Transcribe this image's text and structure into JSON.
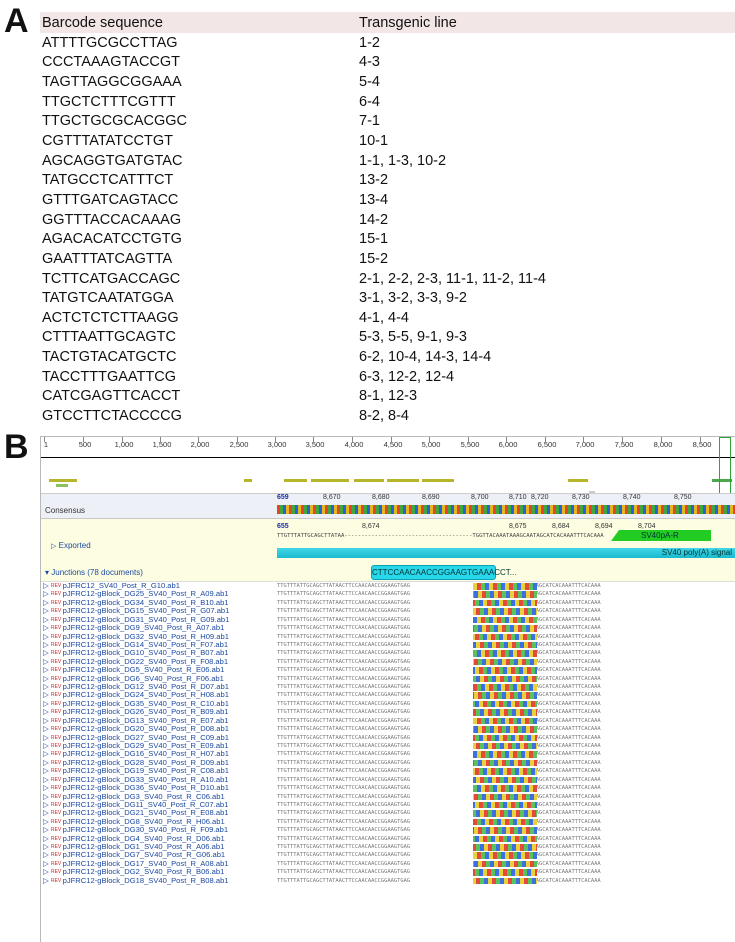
{
  "panels": {
    "a": "A",
    "b": "B"
  },
  "tableA": {
    "headers": [
      "Barcode sequence",
      "Transgenic line"
    ],
    "rows": [
      [
        "ATTTTGCGCCTTAG",
        "1-2"
      ],
      [
        "CCCTAAAGTACCGT",
        "4-3"
      ],
      [
        "TAGTTAGGCGGAAA",
        "5-4"
      ],
      [
        "TTGCTCTTTCGTTT",
        "6-4"
      ],
      [
        "TTGCTGCGCACGGC",
        "7-1"
      ],
      [
        "CGTTTATATCCTGT",
        "10-1"
      ],
      [
        "AGCAGGTGATGTAC",
        "1-1, 1-3, 10-2"
      ],
      [
        "TATGCCTCATTTCT",
        "13-2"
      ],
      [
        "GTTTGATCAGTACC",
        "13-4"
      ],
      [
        "GGTTTACCACAAAG",
        "14-2"
      ],
      [
        "AGACACATCCTGTG",
        "15-1"
      ],
      [
        "GAATTTATCAGTTA",
        "15-2"
      ],
      [
        "TCTTCATGACCAGC",
        "2-1, 2-2, 2-3, 11-1, 11-2, 11-4"
      ],
      [
        "TATGTCAATATGGA",
        "3-1, 3-2, 3-3, 9-2"
      ],
      [
        "ACTCTCTCTTAAGG",
        "4-1, 4-4"
      ],
      [
        "CTTTAATTGCAGTC",
        "5-3, 5-5, 9-1, 9-3"
      ],
      [
        "TACTGTACATGCTC",
        "6-2, 10-4, 14-3, 14-4"
      ],
      [
        "TACCTTTGAATTCG",
        "6-3, 12-2, 12-4"
      ],
      [
        "CATCGAGTTCACCT",
        "8-1, 12-3"
      ],
      [
        "GTCCTTCTACCCCG",
        "8-2, 8-4"
      ]
    ]
  },
  "viewer": {
    "ruler_ticks": [
      "1",
      "500",
      "1,000",
      "1,500",
      "2,000",
      "2,500",
      "3,000",
      "3,500",
      "4,000",
      "4,500",
      "5,000",
      "5,500",
      "6,000",
      "6,500",
      "7,000",
      "7,500",
      "8,000",
      "8,500"
    ],
    "consensus_label": "Consensus",
    "consensus_positions": [
      "659",
      "8,670",
      "8,680",
      "8,690",
      "8,700",
      "8,710",
      "8,720",
      "8,730",
      "8,740",
      "8,750"
    ],
    "exported_label": "Exported",
    "exported_positions": [
      "655",
      "8,674",
      "8,675",
      "8,684",
      "8,694",
      "8,704"
    ],
    "exported_seq": "TTGTTTATTGCAGCTTATAA--------------------------------------TGGTTACAAATAAAGCAATAGCATCACAAATTTCACAAA",
    "feature_sv40pa": "SV40pA-R",
    "feature_polyA": "SV40 poly(A) signal",
    "junctions_label": "Junctions (78 documents)",
    "motif": "CTTCCAACAACCGGAAGTGAAACCT...",
    "rev_tag": "REV",
    "reads": [
      "pJFRC12_SV40_Post_R_G10.ab1",
      "pJFRC12-gBlock_DG25_SV40_Post_R_A09.ab1",
      "pJFRC12-gBlock_DG34_SV40_Post_R_B10.ab1",
      "pJFRC12-gBlock_DG15_SV40_Post_R_G07.ab1",
      "pJFRC12-gBlock_DG31_SV40_Post_R_G09.ab1",
      "pJFRC12-gBlock_DG9_SV40_Post_R_A07.ab1",
      "pJFRC12-gBlock_DG32_SV40_Post_R_H09.ab1",
      "pJFRC12-gBlock_DG14_SV40_Post_R_F07.ab1",
      "pJFRC12-gBlock_DG10_SV40_Post_R_B07.ab1",
      "pJFRC12-gBlock_DG22_SV40_Post_R_F08.ab1",
      "pJFRC12-gBlock_DG5_SV40_Post_R_E06.ab1",
      "pJFRC12-gBlock_DG6_SV40_Post_R_F06.ab1",
      "pJFRC12-gBlock_DG12_SV40_Post_R_D07.ab1",
      "pJFRC12-gBlock_DG24_SV40_Post_R_H08.ab1",
      "pJFRC12-gBlock_DG35_SV40_Post_R_C10.ab1",
      "pJFRC12-gBlock_DG26_SV40_Post_R_B09.ab1",
      "pJFRC12-gBlock_DG13_SV40_Post_R_E07.ab1",
      "pJFRC12-gBlock_DG20_SV40_Post_R_D08.ab1",
      "pJFRC12-gBlock_DG27_SV40_Post_R_C09.ab1",
      "pJFRC12-gBlock_DG29_SV40_Post_R_E09.ab1",
      "pJFRC12-gBlock_DG16_SV40_Post_R_H07.ab1",
      "pJFRC12-gBlock_DG28_SV40_Post_R_D09.ab1",
      "pJFRC12-gBlock_DG19_SV40_Post_R_C08.ab1",
      "pJFRC12-gBlock_DG33_SV40_Post_R_A10.ab1",
      "pJFRC12-gBlock_DG36_SV40_Post_R_D10.ab1",
      "pJFRC12-gBlock_DG3_SV40_Post_R_C06.ab1",
      "pJFRC12-gBlock_DG11_SV40_Post_R_C07.ab1",
      "pJFRC12-gBlock_DG21_SV40_Post_R_E08.ab1",
      "pJFRC12-gBlock_DG8_SV40_Post_R_H06.ab1",
      "pJFRC12-gBlock_DG30_SV40_Post_R_F09.ab1",
      "pJFRC12-gBlock_DG4_SV40_Post_R_D06.ab1",
      "pJFRC12-gBlock_DG1_SV40_Post_R_A06.ab1",
      "pJFRC12-gBlock_DG7_SV40_Post_R_G06.ab1",
      "pJFRC12-gBlock_DG17_SV40_Post_R_A08.ab1",
      "pJFRC12-gBlock_DG2_SV40_Post_R_B06.ab1",
      "pJFRC12-gBlock_DG18_SV40_Post_R_B08.ab1"
    ],
    "read_seq_left": "TTGTTTATTGCAGCTTATAACTTCCAACAACCGGAAGTGAG",
    "read_seq_right": "TGGTTACAAATAAAGCAATAGCATCACAAATTTCACAAA"
  }
}
